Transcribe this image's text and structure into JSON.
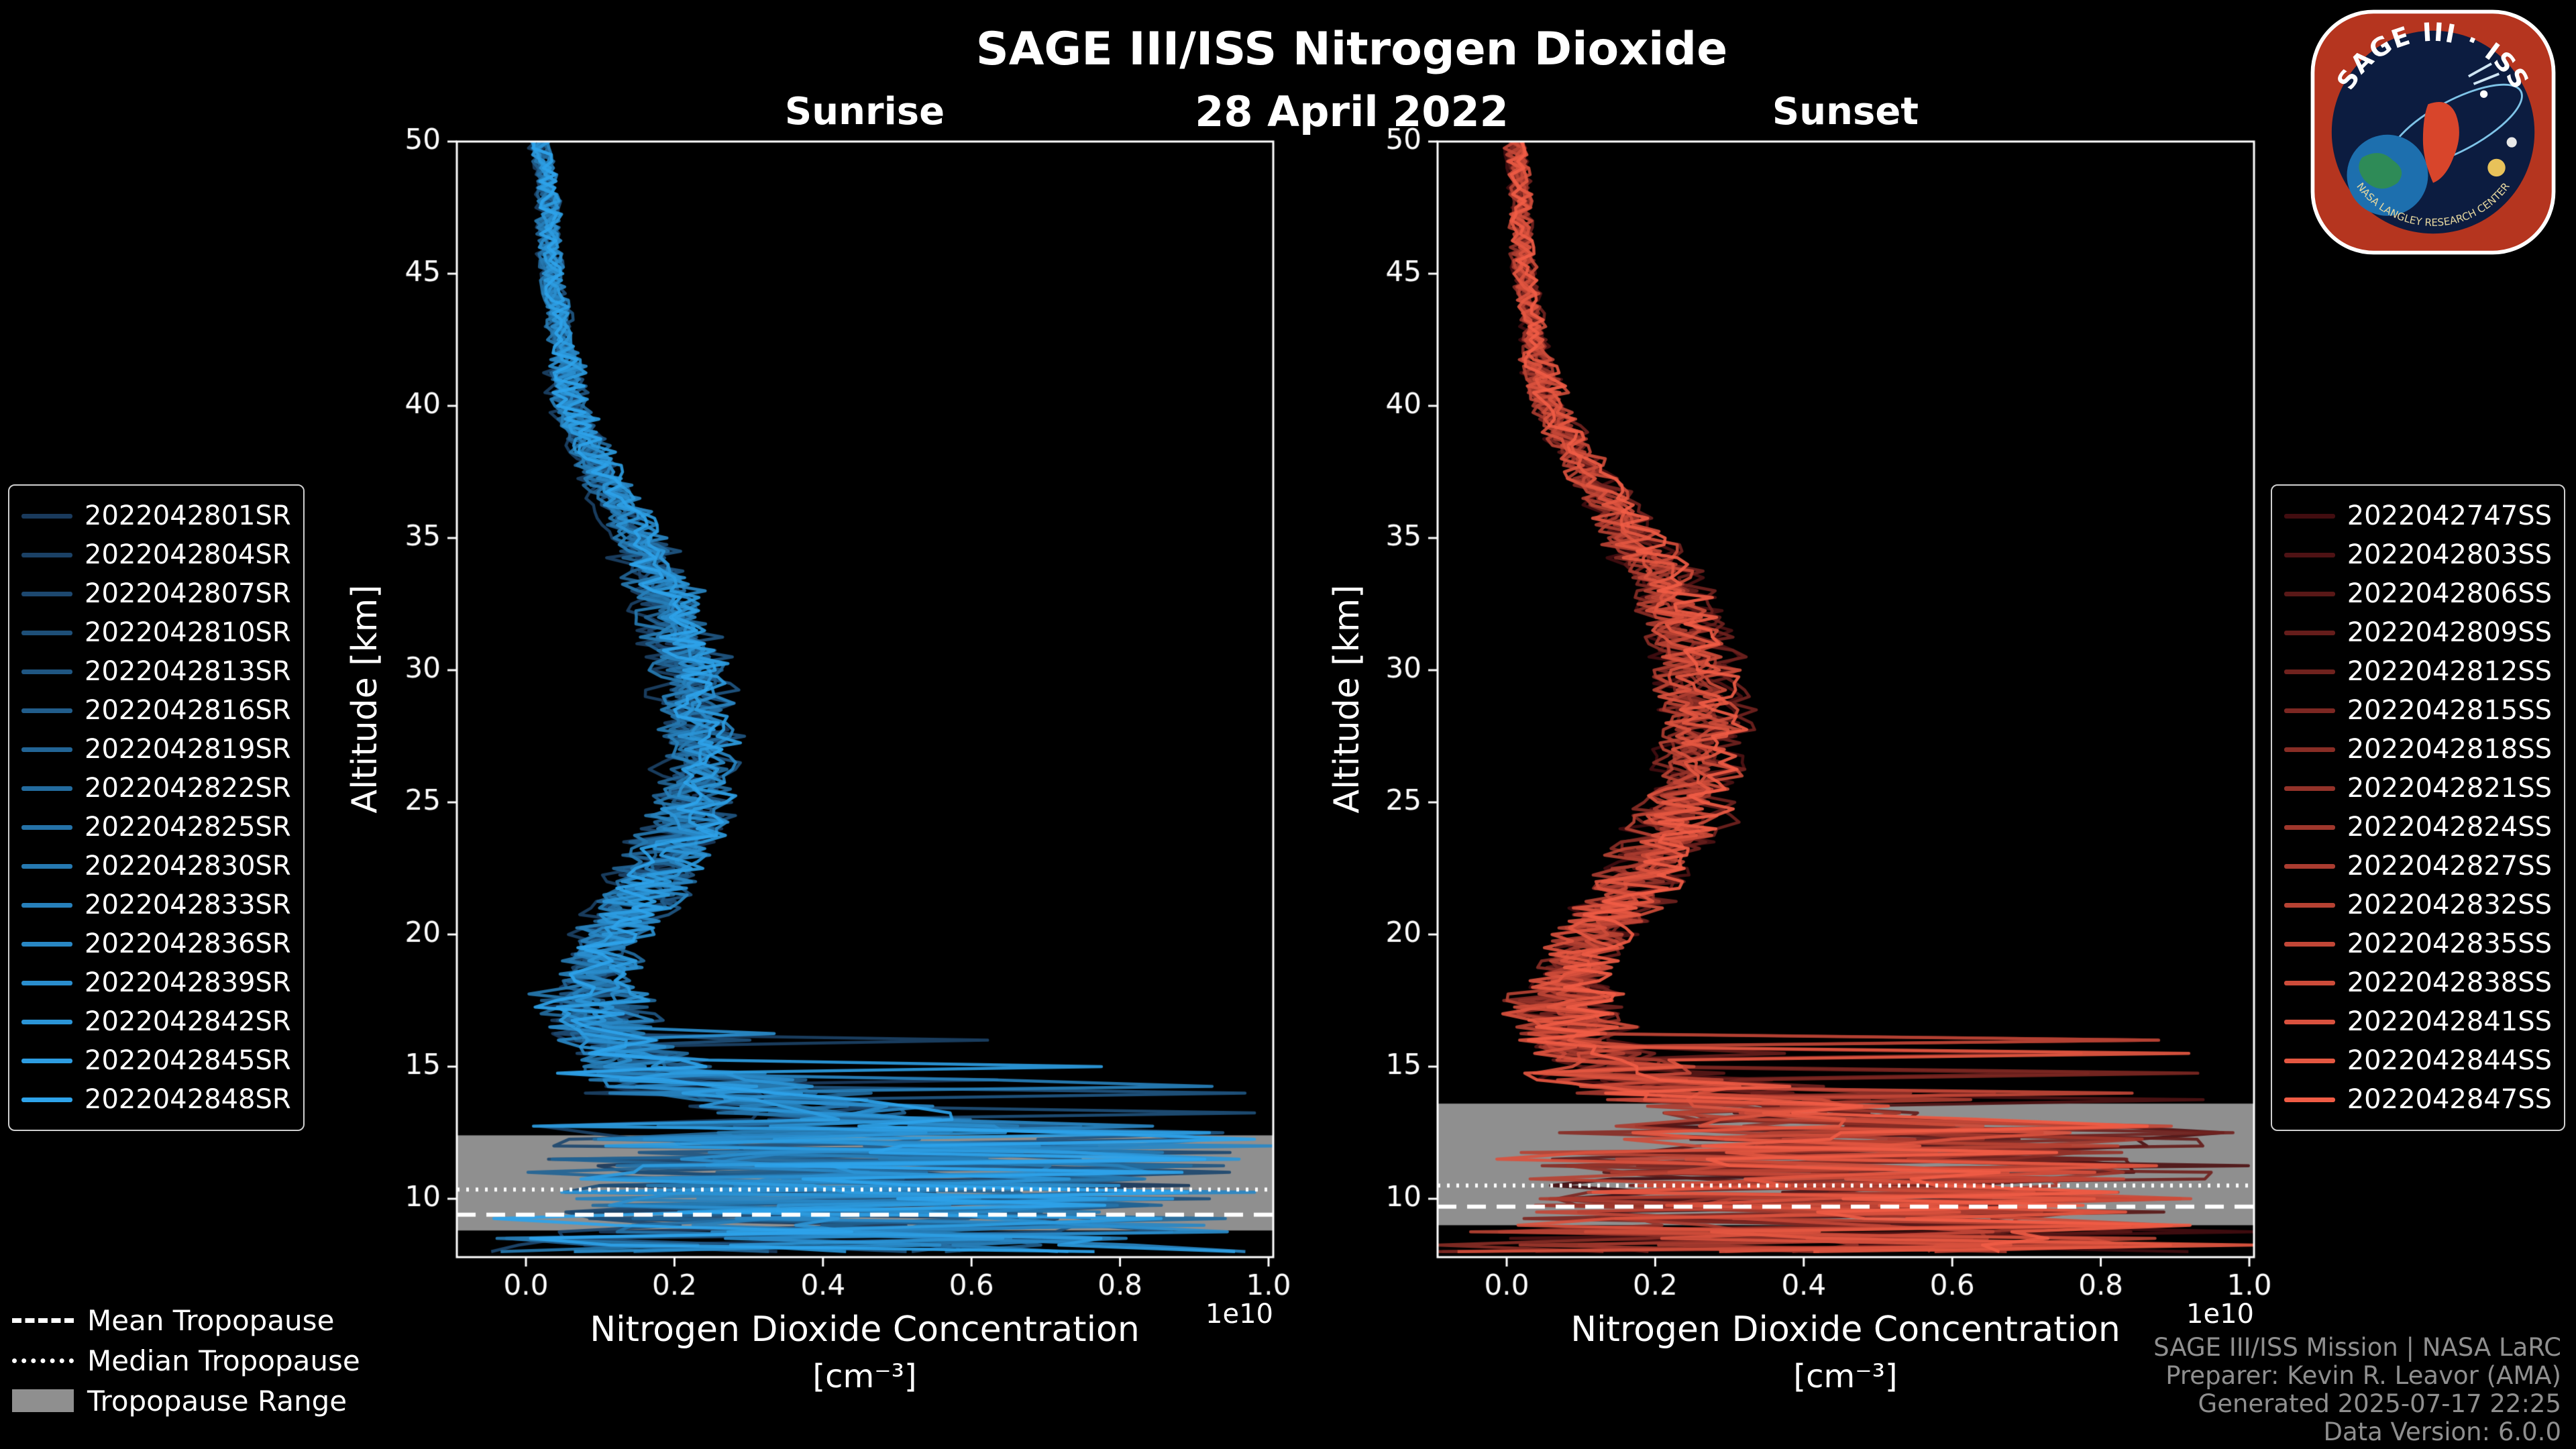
{
  "header": {
    "title": "SAGE III/ISS Nitrogen Dioxide",
    "date": "28 April 2022"
  },
  "logo": {
    "title": "SAGE III · ISS",
    "subtitle": "NASA LANGLEY RESEARCH CENTER"
  },
  "tropopause_legend": {
    "mean": "Mean Tropopause",
    "median": "Median Tropopause",
    "range": "Tropopause Range"
  },
  "footer": {
    "mission": "SAGE III/ISS Mission | NASA LaRC",
    "preparer": "Preparer: Kevin R. Leavor (AMA)",
    "generated": "Generated 2025-07-17 22:25",
    "version": "Data Version: 6.0.0"
  },
  "chart_data": [
    {
      "type": "line",
      "panel": "sunrise",
      "title": "Sunrise",
      "ylabel": "Altitude [km]",
      "xlabel": "Nitrogen Dioxide Concentration",
      "xunits": "[cm⁻³]",
      "x_offset_text": "1e10",
      "xlim": [
        -0.093,
        1.006
      ],
      "ylim": [
        7.8,
        50
      ],
      "x_ticks": [
        0.0,
        0.2,
        0.4,
        0.6,
        0.8,
        1.0
      ],
      "y_ticks": [
        10,
        15,
        20,
        25,
        30,
        35,
        40,
        45,
        50
      ],
      "legend_position": "outside-left",
      "grid": false,
      "color_start": "#1a3a5c",
      "color_end": "#2ea3ea",
      "series_names": [
        "2022042801SR",
        "2022042804SR",
        "2022042807SR",
        "2022042810SR",
        "2022042813SR",
        "2022042816SR",
        "2022042819SR",
        "2022042822SR",
        "2022042825SR",
        "2022042830SR",
        "2022042833SR",
        "2022042836SR",
        "2022042839SR",
        "2022042842SR",
        "2022042845SR",
        "2022042848SR"
      ],
      "base_profile": {
        "altitude_km": [
          50,
          48,
          46,
          44,
          42,
          40,
          38,
          36,
          34,
          32,
          30,
          28,
          26,
          24,
          22,
          20,
          18,
          17,
          16,
          15,
          14,
          13.5,
          13,
          12,
          11,
          10,
          9,
          8
        ],
        "concentration_1e10": [
          0.02,
          0.03,
          0.03,
          0.04,
          0.05,
          0.06,
          0.09,
          0.13,
          0.17,
          0.2,
          0.22,
          0.23,
          0.23,
          0.21,
          0.17,
          0.12,
          0.09,
          0.09,
          0.11,
          0.17,
          0.28,
          0.38,
          0.45,
          0.5,
          0.45,
          0.5,
          0.45,
          0.35
        ]
      },
      "tropopause": {
        "range_km": [
          8.8,
          12.4
        ],
        "mean_km": 9.4,
        "median_km": 10.35
      }
    },
    {
      "type": "line",
      "panel": "sunset",
      "title": "Sunset",
      "ylabel": "Altitude [km]",
      "xlabel": "Nitrogen Dioxide Concentration",
      "xunits": "[cm⁻³]",
      "x_offset_text": "1e10",
      "xlim": [
        -0.093,
        1.006
      ],
      "ylim": [
        7.8,
        50
      ],
      "x_ticks": [
        0.0,
        0.2,
        0.4,
        0.6,
        0.8,
        1.0
      ],
      "y_ticks": [
        10,
        15,
        20,
        25,
        30,
        35,
        40,
        45,
        50
      ],
      "legend_position": "outside-right",
      "grid": false,
      "color_start": "#420d10",
      "color_end": "#f05c45",
      "series_names": [
        "2022042747SS",
        "2022042803SS",
        "2022042806SS",
        "2022042809SS",
        "2022042812SS",
        "2022042815SS",
        "2022042818SS",
        "2022042821SS",
        "2022042824SS",
        "2022042827SS",
        "2022042832SS",
        "2022042835SS",
        "2022042838SS",
        "2022042841SS",
        "2022042844SS",
        "2022042847SS"
      ],
      "base_profile": {
        "altitude_km": [
          50,
          48,
          46,
          44,
          42,
          40,
          38,
          36,
          34,
          32,
          30,
          28,
          26,
          24,
          22,
          20,
          18,
          17,
          16,
          15,
          14,
          13.5,
          13,
          12,
          11,
          10,
          9,
          8
        ],
        "concentration_1e10": [
          0.01,
          0.02,
          0.02,
          0.03,
          0.04,
          0.06,
          0.1,
          0.15,
          0.2,
          0.24,
          0.26,
          0.27,
          0.26,
          0.23,
          0.18,
          0.12,
          0.08,
          0.08,
          0.1,
          0.16,
          0.26,
          0.36,
          0.45,
          0.5,
          0.45,
          0.5,
          0.45,
          0.35
        ]
      },
      "tropopause": {
        "range_km": [
          9.0,
          13.6
        ],
        "mean_km": 9.7,
        "median_km": 10.5
      }
    }
  ]
}
